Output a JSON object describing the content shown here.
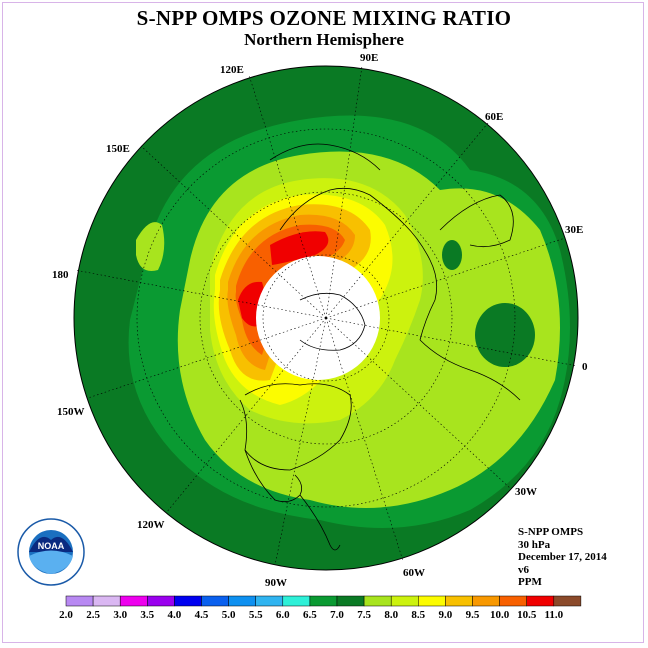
{
  "title": "S-NPP OMPS OZONE MIXING RATIO",
  "subtitle": "Northern Hemisphere",
  "longitude_labels": [
    "90E",
    "60E",
    "30E",
    "0",
    "30W",
    "60W",
    "90W",
    "120W",
    "150W",
    "180",
    "150E",
    "120E"
  ],
  "info": {
    "instrument": "S-NPP OMPS",
    "level": "30 hPa",
    "date": "December 17, 2014",
    "version": "v6",
    "units": "PPM"
  },
  "logo_text": "NOAA",
  "scale": {
    "labels": [
      "2.0",
      "2.5",
      "3.0",
      "3.5",
      "4.0",
      "4.5",
      "5.0",
      "5.5",
      "6.0",
      "6.5",
      "7.0",
      "7.5",
      "8.0",
      "8.5",
      "9.0",
      "9.5",
      "10.0",
      "10.5",
      "11.0"
    ],
    "colors": [
      "#b889f2",
      "#dab7f2",
      "#ee00ee",
      "#9a00ee",
      "#0000f0",
      "#0a60ee",
      "#0e90f0",
      "#30b4f0",
      "#2ef0d8",
      "#0a9a32",
      "#0a7a24",
      "#a8e41e",
      "#ccf20e",
      "#fcfc00",
      "#f8c000",
      "#f89800",
      "#f86000",
      "#f00000",
      "#8b4a2a"
    ]
  }
}
